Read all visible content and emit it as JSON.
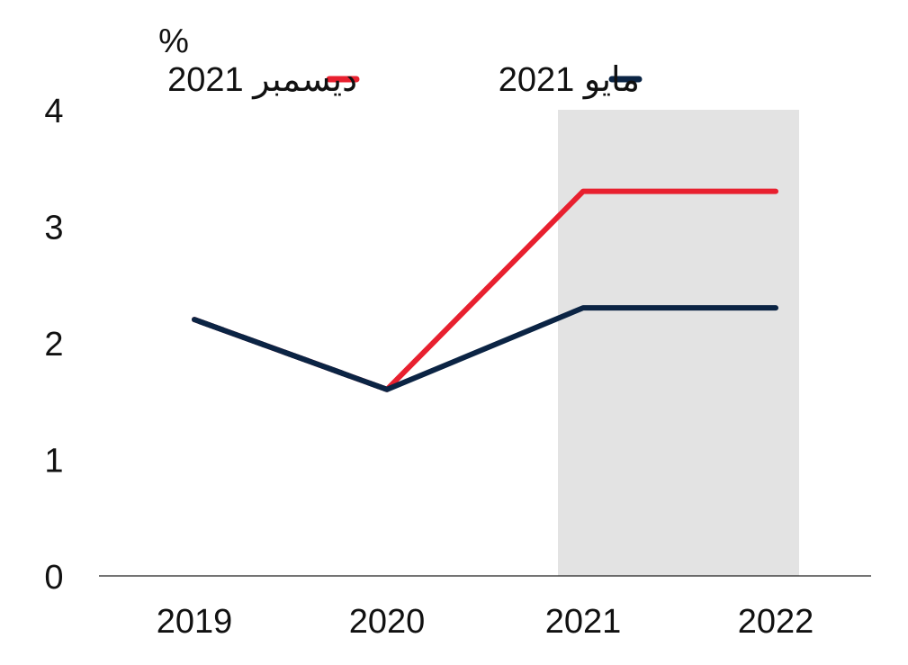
{
  "chart_data": {
    "type": "line",
    "ylabel": "%",
    "categories": [
      "2019",
      "2020",
      "2021",
      "2022"
    ],
    "ylim": [
      0,
      4
    ],
    "yticks": [
      "0",
      "1",
      "2",
      "3",
      "4"
    ],
    "legend_position": "top",
    "shaded_range": [
      "2021",
      "2022"
    ],
    "shade_color": "#e3e3e3",
    "series": [
      {
        "name": "ديسمبر 2021",
        "color": "#e8202f",
        "values": [
          2.2,
          1.6,
          3.3,
          3.3
        ],
        "dashed_segments": [
          0
        ]
      },
      {
        "name": "مايو 2021",
        "color": "#0b2444",
        "values": [
          2.2,
          1.6,
          2.3,
          2.3
        ],
        "dashed_segments": []
      }
    ]
  }
}
